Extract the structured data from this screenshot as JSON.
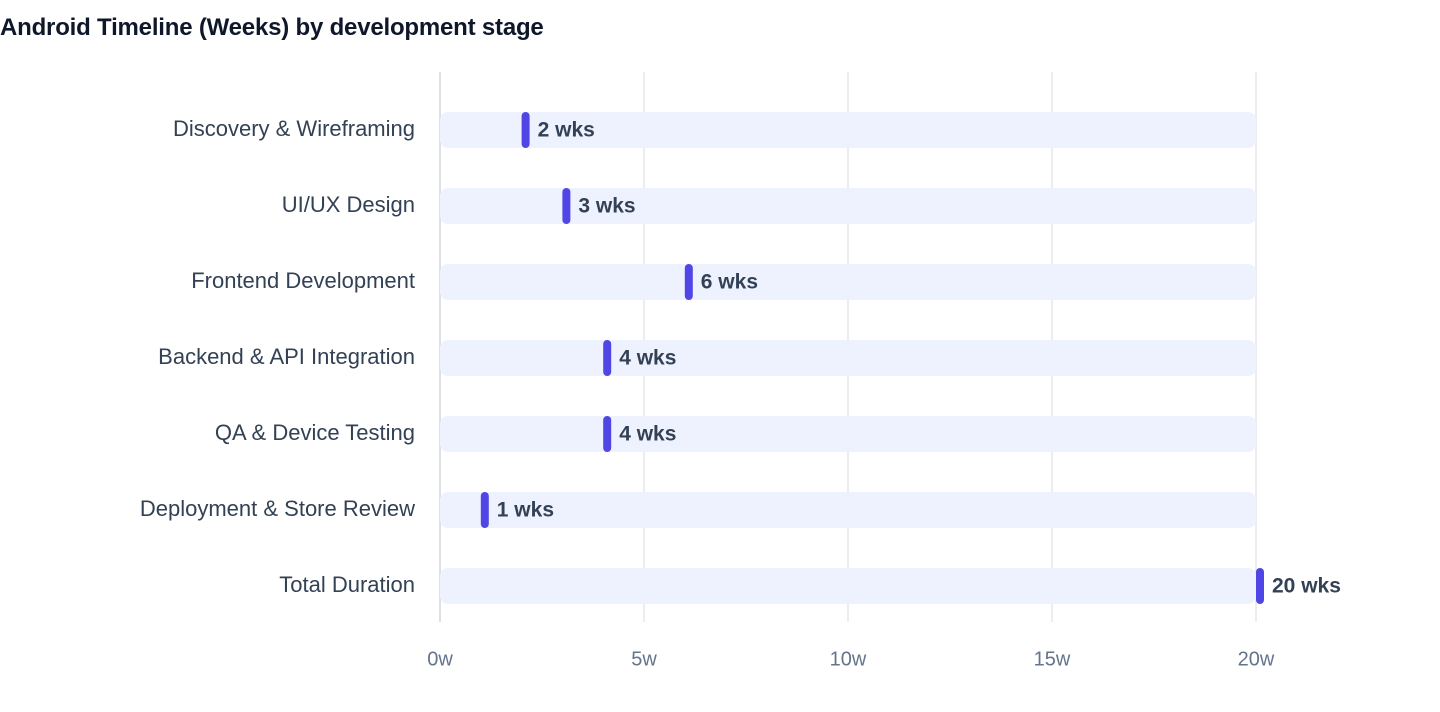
{
  "chart_data": {
    "type": "bar",
    "title": "Android Timeline (Weeks) by development stage",
    "xlabel": "",
    "ylabel": "",
    "categories": [
      "Discovery & Wireframing",
      "UI/UX Design",
      "Frontend Development",
      "Backend & API Integration",
      "QA & Device Testing",
      "Deployment & Store Review",
      "Total Duration"
    ],
    "values": [
      2,
      3,
      6,
      4,
      4,
      1,
      20
    ],
    "value_labels": [
      "2 wks",
      "3 wks",
      "6 wks",
      "4 wks",
      "4 wks",
      "1 wks",
      "20 wks"
    ],
    "xlim": [
      0,
      20
    ],
    "x_ticks": [
      0,
      5,
      10,
      15,
      20
    ],
    "x_tick_labels": [
      "0w",
      "5w",
      "10w",
      "15w",
      "20w"
    ],
    "orientation": "horizontal",
    "grid": "vertical",
    "legend": "none",
    "colors": {
      "track": "#eef2ff",
      "marker": "#4f46e5",
      "grid": "#e5e7eb",
      "axis": "#d1d5db"
    }
  }
}
